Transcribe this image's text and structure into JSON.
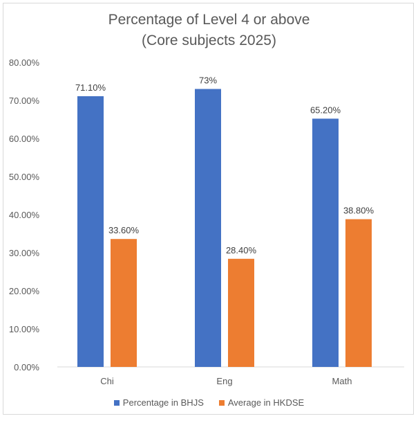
{
  "chart_data": {
    "type": "bar",
    "title_line1": "Percentage of Level 4 or above",
    "title_line2": "(Core subjects 2025)",
    "categories": [
      "Chi",
      "Eng",
      "Math"
    ],
    "series": [
      {
        "name": "Percentage in BHJS",
        "values": [
          71.1,
          73,
          65.2
        ],
        "labels": [
          "71.10%",
          "73%",
          "65.20%"
        ],
        "color": "#4472c4"
      },
      {
        "name": "Average in HKDSE",
        "values": [
          33.6,
          28.4,
          38.8
        ],
        "labels": [
          "33.60%",
          "28.40%",
          "38.80%"
        ],
        "color": "#ed7d31"
      }
    ],
    "ylim": [
      0,
      80
    ],
    "ytick_values": [
      0,
      10,
      20,
      30,
      40,
      50,
      60,
      70,
      80
    ],
    "yticks": [
      "0.00%",
      "10.00%",
      "20.00%",
      "30.00%",
      "40.00%",
      "50.00%",
      "60.00%",
      "70.00%",
      "80.00%"
    ],
    "grid": false,
    "legend_position": "bottom"
  }
}
